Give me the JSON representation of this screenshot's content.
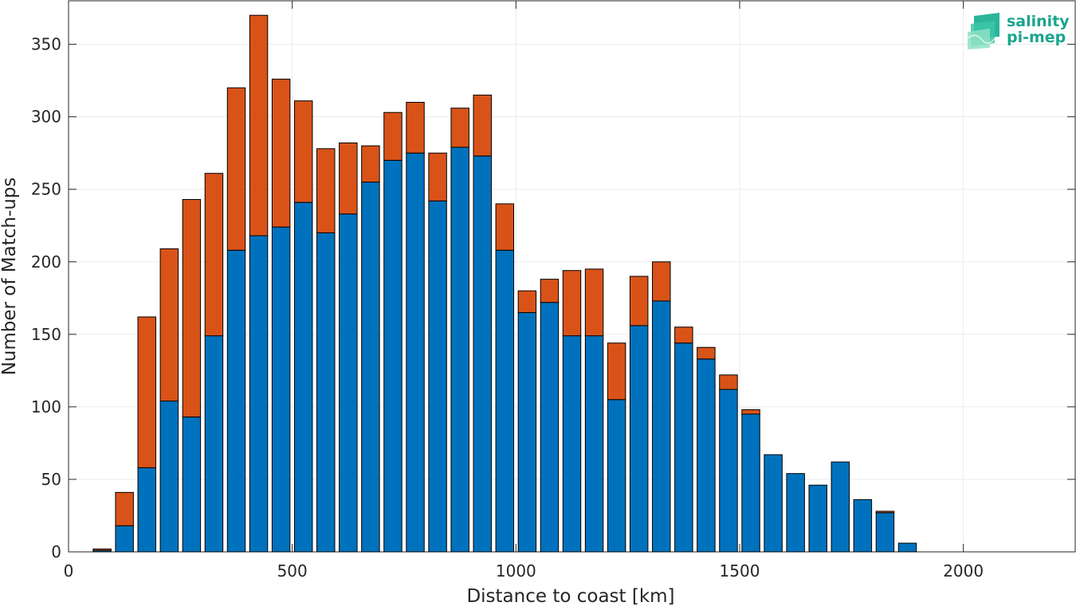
{
  "chart_data": {
    "type": "bar",
    "stacked": true,
    "xlabel": "Distance to coast [km]",
    "ylabel": "Number of Match-ups",
    "xlim": [
      0,
      2250
    ],
    "ylim": [
      0,
      380
    ],
    "xticks": [
      0,
      500,
      1000,
      1500,
      2000
    ],
    "yticks": [
      0,
      50,
      100,
      150,
      200,
      250,
      300,
      350
    ],
    "grid": true,
    "bar_width": 40,
    "x": [
      75,
      125,
      175,
      225,
      275,
      325,
      375,
      425,
      475,
      525,
      575,
      625,
      675,
      725,
      775,
      825,
      875,
      925,
      975,
      1025,
      1075,
      1125,
      1175,
      1225,
      1275,
      1325,
      1375,
      1425,
      1475,
      1525,
      1575,
      1625,
      1675,
      1725,
      1775,
      1825,
      1875
    ],
    "series": [
      {
        "color": "#0072bd",
        "values": [
          1,
          18,
          58,
          104,
          93,
          149,
          208,
          218,
          224,
          241,
          220,
          233,
          255,
          270,
          275,
          242,
          279,
          273,
          208,
          165,
          172,
          149,
          149,
          105,
          156,
          173,
          144,
          133,
          112,
          95,
          67,
          54,
          46,
          62,
          36,
          27,
          6
        ]
      },
      {
        "color": "#d95319",
        "values": [
          1,
          23,
          104,
          105,
          150,
          112,
          112,
          152,
          102,
          70,
          58,
          49,
          25,
          33,
          35,
          33,
          27,
          42,
          32,
          15,
          16,
          45,
          46,
          39,
          34,
          27,
          11,
          8,
          10,
          3,
          0,
          0,
          0,
          0,
          0,
          1,
          0
        ]
      }
    ]
  },
  "logo": {
    "line1": "salinity",
    "line2": "pi-mep"
  }
}
